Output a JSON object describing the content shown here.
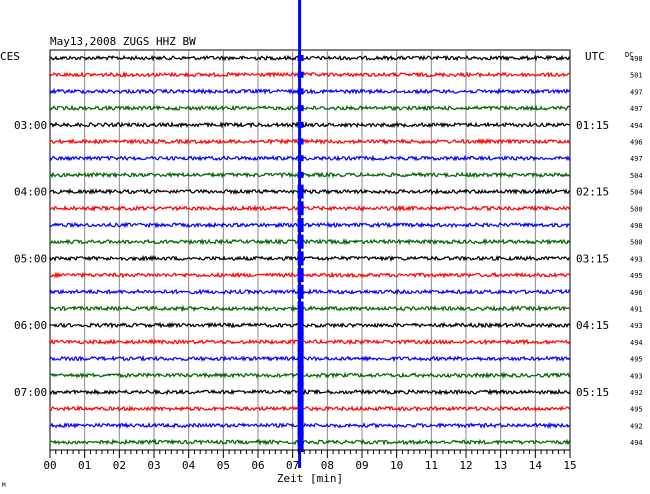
{
  "header": {
    "station": "May13,2008  ZUGS HHZ BW",
    "left_zone": "CES",
    "right_zone": "UTC",
    "dc_header": "DC"
  },
  "footer": {
    "mark": "M"
  },
  "chart_data": {
    "type": "line",
    "title": "May13,2008  ZUGS HHZ BW",
    "xlabel": "Zeit [min]",
    "ylabel": "",
    "x_ticks": [
      "00",
      "01",
      "02",
      "03",
      "04",
      "05",
      "06",
      "07",
      "08",
      "09",
      "10",
      "11",
      "12",
      "13",
      "14",
      "15"
    ],
    "xlim": [
      0,
      15
    ],
    "grid": true,
    "colors": [
      "#000000",
      "#ff0000",
      "#0000ff",
      "#006400"
    ],
    "left_time_labels": [
      {
        "trace": 4,
        "text": "03:00"
      },
      {
        "trace": 8,
        "text": "04:00"
      },
      {
        "trace": 12,
        "text": "05:00"
      },
      {
        "trace": 16,
        "text": "06:00"
      },
      {
        "trace": 20,
        "text": "07:00"
      }
    ],
    "right_time_labels": [
      {
        "trace": 4,
        "text": "01:15"
      },
      {
        "trace": 8,
        "text": "02:15"
      },
      {
        "trace": 12,
        "text": "03:15"
      },
      {
        "trace": 16,
        "text": "04:15"
      },
      {
        "trace": 20,
        "text": "05:15"
      }
    ],
    "dc_values": [
      498,
      501,
      497,
      497,
      494,
      496,
      497,
      504,
      504,
      500,
      498,
      500,
      493,
      495,
      496,
      491,
      493,
      494,
      495,
      493,
      492,
      495,
      492,
      494
    ],
    "trace_count": 24,
    "event_minute": 7.2,
    "event_color": "#0000ff"
  }
}
